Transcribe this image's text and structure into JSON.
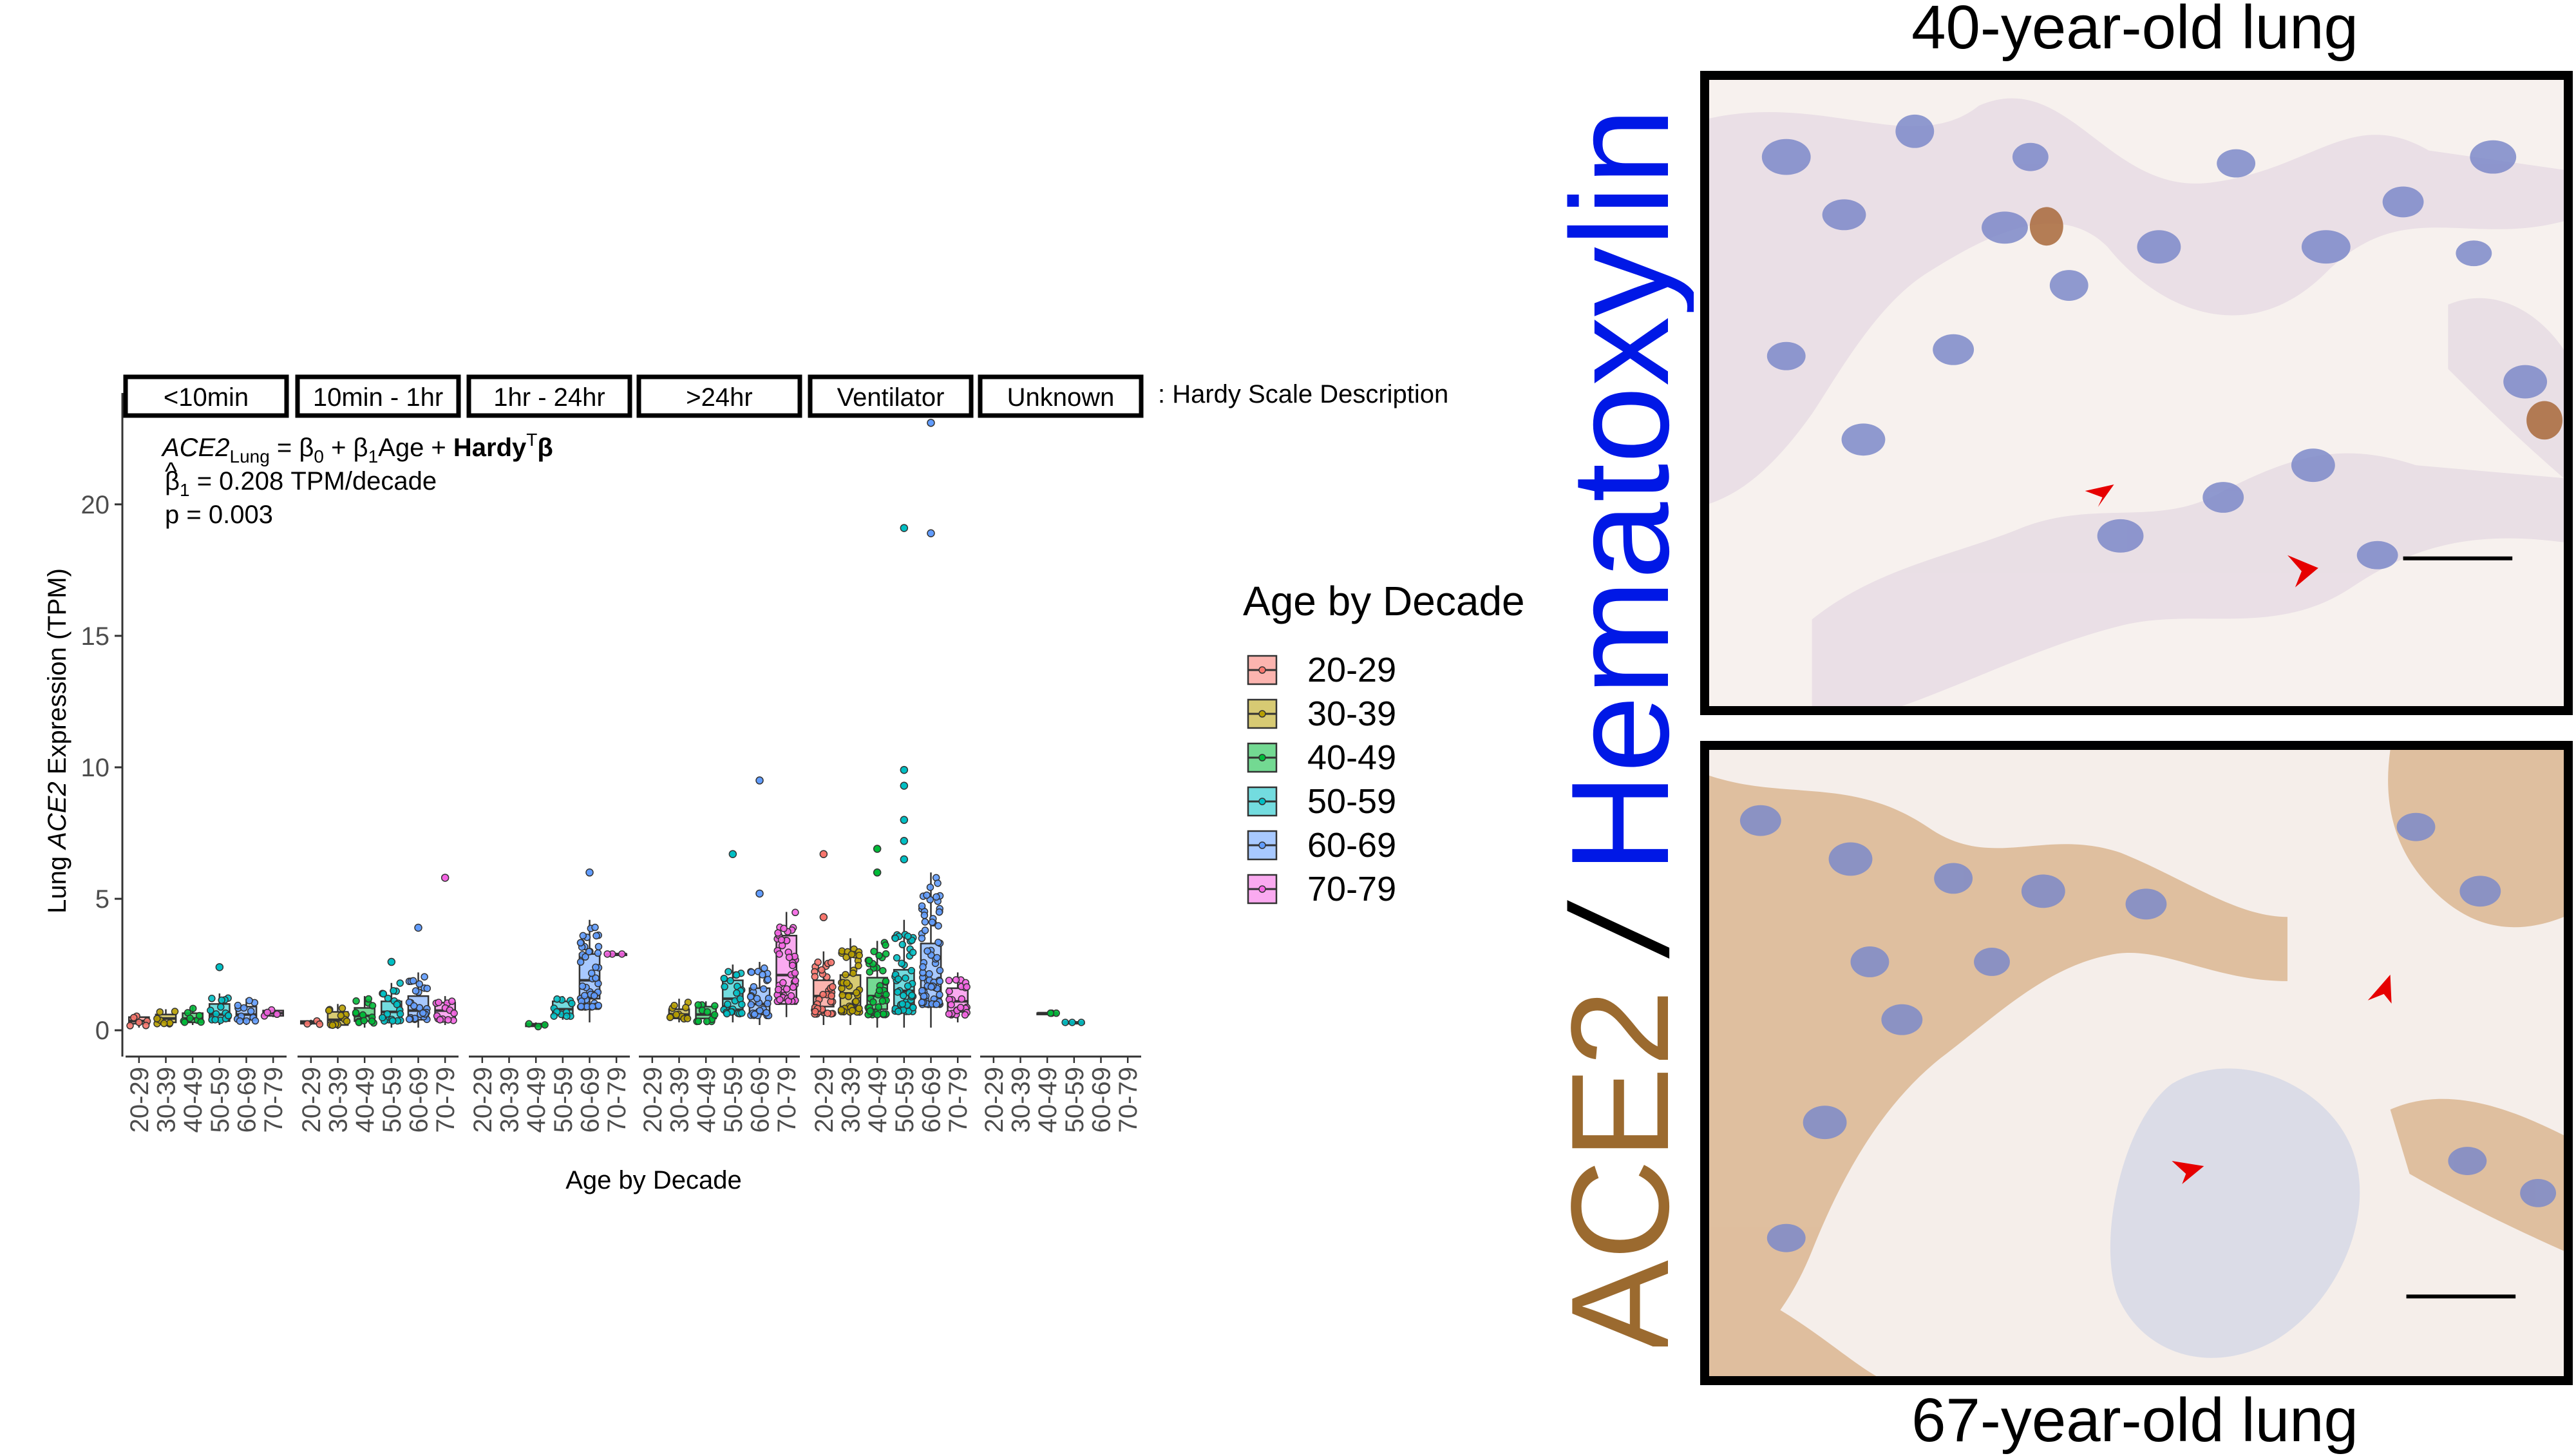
{
  "chart_data": {
    "type": "box",
    "facet_label": ": Hardy Scale Description",
    "facets": [
      "<10min",
      "10min - 1hr",
      "1hr - 24hr",
      ">24hr",
      "Ventilator",
      "Unknown"
    ],
    "categories": [
      "20-29",
      "30-39",
      "40-49",
      "50-59",
      "60-69",
      "70-79"
    ],
    "xlabel": "Age by Decade",
    "ylabel": "Lung ACE2 Expression (TPM)",
    "ylim": [
      -1,
      23.5
    ],
    "yticks": [
      0,
      5,
      10,
      15,
      20
    ],
    "legend": {
      "title": "Age by Decade",
      "position": "right",
      "entries": [
        "20-29",
        "30-39",
        "40-49",
        "50-59",
        "60-69",
        "70-79"
      ],
      "colors": [
        "#F8766D",
        "#B79F00",
        "#00BA38",
        "#00BFC4",
        "#619CFF",
        "#F564E3"
      ]
    },
    "annotation": {
      "model_lhs": "ACE2",
      "model_lhs_sub": "Lung",
      "model_eq": " = β",
      "model_b0_sub": "0",
      "model_plus1": " + β",
      "model_b1_sub": "1",
      "model_age": "Age + ",
      "model_hardy": "Hardy",
      "model_hardy_sup": "T",
      "model_beta": "β",
      "beta_hat": "β",
      "beta_hat_sub": "1",
      "beta_value": " = 0.208 TPM/decade",
      "p_value": "p = 0.003"
    },
    "boxes": [
      {
        "facet": "<10min",
        "group": "20-29",
        "q1": 0.25,
        "median": 0.35,
        "q3": 0.5,
        "lo": 0.1,
        "hi": 0.6
      },
      {
        "facet": "<10min",
        "group": "30-39",
        "q1": 0.3,
        "median": 0.45,
        "q3": 0.6,
        "lo": 0.15,
        "hi": 0.8
      },
      {
        "facet": "<10min",
        "group": "40-49",
        "q1": 0.3,
        "median": 0.45,
        "q3": 0.65,
        "lo": 0.2,
        "hi": 0.9
      },
      {
        "facet": "<10min",
        "group": "50-59",
        "q1": 0.35,
        "median": 0.6,
        "q3": 1.0,
        "lo": 0.2,
        "hi": 1.4
      },
      {
        "facet": "<10min",
        "group": "60-69",
        "q1": 0.4,
        "median": 0.6,
        "q3": 0.9,
        "lo": 0.2,
        "hi": 1.2
      },
      {
        "facet": "<10min",
        "group": "70-79",
        "q1": 0.55,
        "median": 0.65,
        "q3": 0.75,
        "lo": 0.5,
        "hi": 0.8
      },
      {
        "facet": "10min - 1hr",
        "group": "20-29",
        "q1": 0.25,
        "median": 0.3,
        "q3": 0.35,
        "lo": 0.2,
        "hi": 0.4
      },
      {
        "facet": "10min - 1hr",
        "group": "30-39",
        "q1": 0.2,
        "median": 0.4,
        "q3": 0.7,
        "lo": 0.05,
        "hi": 1.0
      },
      {
        "facet": "10min - 1hr",
        "group": "40-49",
        "q1": 0.35,
        "median": 0.55,
        "q3": 0.85,
        "lo": 0.1,
        "hi": 1.3
      },
      {
        "facet": "10min - 1hr",
        "group": "50-59",
        "q1": 0.4,
        "median": 0.7,
        "q3": 1.1,
        "lo": 0.1,
        "hi": 1.8
      },
      {
        "facet": "10min - 1hr",
        "group": "60-69",
        "q1": 0.4,
        "median": 0.75,
        "q3": 1.3,
        "lo": 0.1,
        "hi": 2.2
      },
      {
        "facet": "10min - 1hr",
        "group": "70-79",
        "q1": 0.45,
        "median": 0.75,
        "q3": 1.05,
        "lo": 0.2,
        "hi": 1.3
      },
      {
        "facet": "1hr - 24hr",
        "group": "40-49",
        "q1": 0.15,
        "median": 0.2,
        "q3": 0.25,
        "lo": 0.1,
        "hi": 0.3
      },
      {
        "facet": "1hr - 24hr",
        "group": "50-59",
        "q1": 0.6,
        "median": 0.8,
        "q3": 1.1,
        "lo": 0.4,
        "hi": 1.3
      },
      {
        "facet": "1hr - 24hr",
        "group": "60-69",
        "q1": 1.2,
        "median": 1.9,
        "q3": 2.9,
        "lo": 0.3,
        "hi": 4.2
      },
      {
        "facet": "1hr - 24hr",
        "group": "70-79",
        "q1": 2.9,
        "median": 2.9,
        "q3": 2.9,
        "lo": 2.9,
        "hi": 2.9
      },
      {
        "facet": ">24hr",
        "group": "30-39",
        "q1": 0.45,
        "median": 0.6,
        "q3": 0.8,
        "lo": 0.3,
        "hi": 1.2
      },
      {
        "facet": ">24hr",
        "group": "40-49",
        "q1": 0.45,
        "median": 0.6,
        "q3": 0.9,
        "lo": 0.2,
        "hi": 1.1
      },
      {
        "facet": ">24hr",
        "group": "50-59",
        "q1": 0.8,
        "median": 1.2,
        "q3": 1.9,
        "lo": 0.3,
        "hi": 2.5
      },
      {
        "facet": ">24hr",
        "group": "60-69",
        "q1": 0.6,
        "median": 1.0,
        "q3": 1.6,
        "lo": 0.2,
        "hi": 2.6
      },
      {
        "facet": ">24hr",
        "group": "70-79",
        "q1": 1.0,
        "median": 2.1,
        "q3": 3.6,
        "lo": 0.5,
        "hi": 4.5
      },
      {
        "facet": "Ventilator",
        "group": "20-29",
        "q1": 0.9,
        "median": 1.3,
        "q3": 1.9,
        "lo": 0.2,
        "hi": 3.0
      },
      {
        "facet": "Ventilator",
        "group": "30-39",
        "q1": 0.9,
        "median": 1.4,
        "q3": 2.1,
        "lo": 0.2,
        "hi": 3.5
      },
      {
        "facet": "Ventilator",
        "group": "40-49",
        "q1": 0.8,
        "median": 1.3,
        "q3": 2.0,
        "lo": 0.1,
        "hi": 3.4
      },
      {
        "facet": "Ventilator",
        "group": "50-59",
        "q1": 0.9,
        "median": 1.5,
        "q3": 2.3,
        "lo": 0.1,
        "hi": 4.2
      },
      {
        "facet": "Ventilator",
        "group": "60-69",
        "q1": 0.9,
        "median": 1.6,
        "q3": 3.3,
        "lo": 0.1,
        "hi": 6.0
      },
      {
        "facet": "Ventilator",
        "group": "70-79",
        "q1": 0.7,
        "median": 1.1,
        "q3": 1.6,
        "lo": 0.3,
        "hi": 2.2
      },
      {
        "facet": "Unknown",
        "group": "40-49",
        "q1": 0.65,
        "median": 0.65,
        "q3": 0.65,
        "lo": 0.65,
        "hi": 0.65
      },
      {
        "facet": "Unknown",
        "group": "50-59",
        "q1": 0.3,
        "median": 0.3,
        "q3": 0.3,
        "lo": 0.3,
        "hi": 0.3
      }
    ],
    "outliers": [
      {
        "facet": "<10min",
        "group": "50-59",
        "y": 2.4
      },
      {
        "facet": "10min - 1hr",
        "group": "50-59",
        "y": 2.6
      },
      {
        "facet": "10min - 1hr",
        "group": "60-69",
        "y": 3.9
      },
      {
        "facet": "10min - 1hr",
        "group": "70-79",
        "y": 5.8
      },
      {
        "facet": "1hr - 24hr",
        "group": "60-69",
        "y": 6.0
      },
      {
        "facet": ">24hr",
        "group": "50-59",
        "y": 6.7
      },
      {
        "facet": ">24hr",
        "group": "60-69",
        "y": 9.5
      },
      {
        "facet": ">24hr",
        "group": "60-69",
        "y": 5.2
      },
      {
        "facet": "Ventilator",
        "group": "20-29",
        "y": 6.7
      },
      {
        "facet": "Ventilator",
        "group": "20-29",
        "y": 4.3
      },
      {
        "facet": "Ventilator",
        "group": "40-49",
        "y": 6.9
      },
      {
        "facet": "Ventilator",
        "group": "40-49",
        "y": 6.0
      },
      {
        "facet": "Ventilator",
        "group": "50-59",
        "y": 19.1
      },
      {
        "facet": "Ventilator",
        "group": "50-59",
        "y": 9.9
      },
      {
        "facet": "Ventilator",
        "group": "50-59",
        "y": 9.3
      },
      {
        "facet": "Ventilator",
        "group": "50-59",
        "y": 8.0
      },
      {
        "facet": "Ventilator",
        "group": "50-59",
        "y": 7.2
      },
      {
        "facet": "Ventilator",
        "group": "50-59",
        "y": 6.5
      },
      {
        "facet": "Ventilator",
        "group": "60-69",
        "y": 23.1
      },
      {
        "facet": "Ventilator",
        "group": "60-69",
        "y": 18.9
      }
    ]
  },
  "micrograph": {
    "top_title": "40-year-old lung",
    "bottom_title": "67-year-old lung",
    "stain_label_ace2": "ACE2",
    "stain_label_sep": " / ",
    "stain_label_hematoxylin": "Hematoxylin",
    "ace2_color": "#9B6A2F",
    "hematoxylin_color": "#0018E6",
    "arrow_color": "#E60000"
  }
}
